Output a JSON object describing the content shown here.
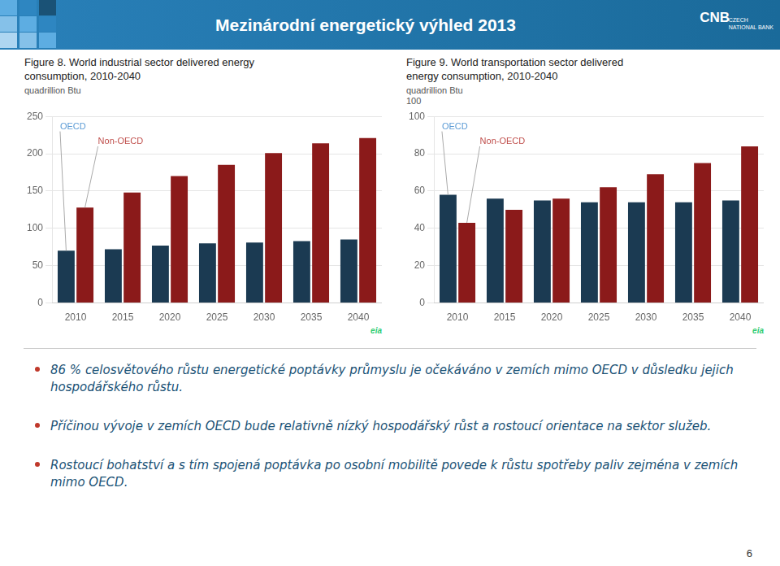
{
  "title": "Mezinárodní energetický výhled 2013",
  "annotations": [
    "CNB",
    "CZECH\nNATIONAL BANK",
    "86 % celosvětového růstu energetické poptávky průmyslu je očekáváno v zemích mimo OECD v důsledku jejich hospodářského růstu.",
    "Příčinou vývoje v zemích OECD bude relativně nízký hospodářský růst a rostoucí orientace na sektor služeb.",
    "Rostoucí bohatství a s tím spojená poptávka po osobní mobilitě povede k růstu spotřeby paliv zejména v zemích mimo OECD.",
    "6"
  ],
  "chart_data": [
    {
      "type": "bar",
      "title": "Figure 8. World industrial sector delivered energy\nconsumption, 2010-2040",
      "ylabel": "quadrillion  Btu",
      "categories": [
        "2010",
        "2015",
        "2020",
        "2025",
        "2030",
        "2035",
        "2040"
      ],
      "series": [
        {
          "name": "OECD",
          "color": "#1b3a52",
          "values": [
            70,
            72,
            77,
            80,
            81,
            83,
            85
          ]
        },
        {
          "name": "Non-OECD",
          "color": "#8b1a1a",
          "values": [
            128,
            148,
            170,
            185,
            201,
            214,
            221
          ]
        }
      ],
      "ylim": [
        0,
        250
      ],
      "yticks": [
        0,
        50,
        100,
        150,
        200,
        250
      ],
      "grid": true,
      "annotations": [
        {
          "text": "OECD",
          "color": "#5b9bd5"
        },
        {
          "text": "Non-OECD",
          "color": "#c0504d"
        },
        {
          "text": "eia",
          "color": "#2ecc71"
        }
      ]
    },
    {
      "type": "bar",
      "title": "Figure 9. World transportation sector delivered\nenergy consumption, 2010-2040",
      "ylabel": "quadrillion  Btu\n100",
      "categories": [
        "2010",
        "2015",
        "2020",
        "2025",
        "2030",
        "2035",
        "2040"
      ],
      "series": [
        {
          "name": "OECD",
          "color": "#1b3a52",
          "values": [
            58,
            56,
            55,
            54,
            54,
            54,
            55
          ]
        },
        {
          "name": "Non-OECD",
          "color": "#8b1a1a",
          "values": [
            43,
            50,
            56,
            62,
            69,
            75,
            84
          ]
        }
      ],
      "ylim": [
        0,
        100
      ],
      "yticks": [
        0,
        20,
        40,
        60,
        80,
        100
      ],
      "grid": true,
      "annotations": [
        {
          "text": "OECD",
          "color": "#5b9bd5"
        },
        {
          "text": "Non-OECD",
          "color": "#c0504d"
        },
        {
          "text": "eia",
          "color": "#2ecc71"
        }
      ]
    }
  ]
}
